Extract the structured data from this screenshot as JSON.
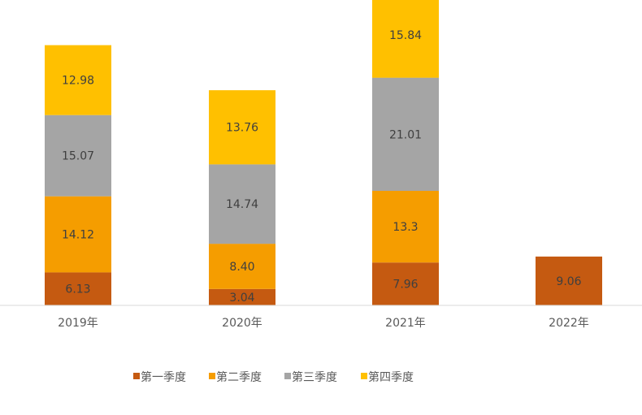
{
  "chart_data": {
    "type": "bar",
    "stacked": true,
    "categories": [
      "2019年",
      "2020年",
      "2021年",
      "2022年"
    ],
    "series": [
      {
        "name": "第一季度",
        "color": "#c55a11",
        "values": [
          6.13,
          3.04,
          7.96,
          9.06
        ],
        "labels": [
          "6.13",
          "3.04",
          "7.96",
          "9.06"
        ]
      },
      {
        "name": "第二季度",
        "color": "#f59d00",
        "values": [
          14.12,
          8.4,
          13.3,
          null
        ],
        "labels": [
          "14.12",
          "8.40",
          "13.3",
          ""
        ]
      },
      {
        "name": "第三季度",
        "color": "#a5a5a5",
        "values": [
          15.07,
          14.74,
          21.01,
          null
        ],
        "labels": [
          "15.07",
          "14.74",
          "21.01",
          ""
        ]
      },
      {
        "name": "第四季度",
        "color": "#ffc000",
        "values": [
          12.98,
          13.76,
          15.84,
          null
        ],
        "labels": [
          "12.98",
          "13.76",
          "15.84",
          ""
        ]
      }
    ],
    "legend_position": "bottom",
    "grid": false,
    "ylim": [
      0,
      60
    ]
  }
}
